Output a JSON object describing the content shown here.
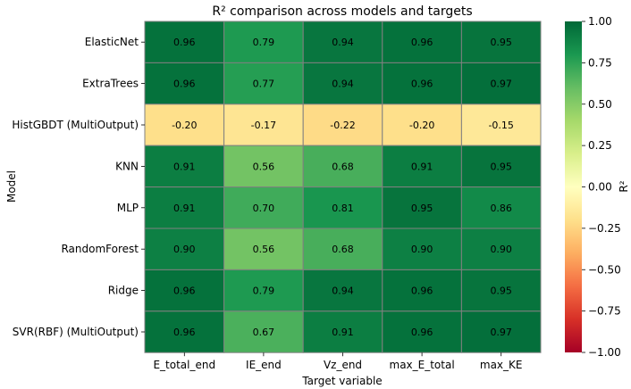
{
  "chart_data": {
    "type": "heatmap",
    "title": "R² comparison across models and targets",
    "xlabel": "Target variable",
    "ylabel": "Model",
    "colorbar_label": "R²",
    "colormap": "RdYlGn",
    "vmin": -1.0,
    "vmax": 1.0,
    "colorbar_ticks": [
      "1.00",
      "0.75",
      "0.50",
      "0.25",
      "0.00",
      "−0.25",
      "−0.50",
      "−0.75",
      "−1.00"
    ],
    "colorbar_tick_values": [
      1.0,
      0.75,
      0.5,
      0.25,
      0.0,
      -0.25,
      -0.5,
      -0.75,
      -1.0
    ],
    "x_categories": [
      "E_total_end",
      "IE_end",
      "Vz_end",
      "max_E_total",
      "max_KE"
    ],
    "y_categories": [
      "ElasticNet",
      "ExtraTrees",
      "HistGBDT (MultiOutput)",
      "KNN",
      "MLP",
      "RandomForest",
      "Ridge",
      "SVR(RBF) (MultiOutput)"
    ],
    "values": [
      [
        0.96,
        0.79,
        0.94,
        0.96,
        0.95
      ],
      [
        0.96,
        0.77,
        0.94,
        0.96,
        0.97
      ],
      [
        -0.2,
        -0.17,
        -0.22,
        -0.2,
        -0.15
      ],
      [
        0.91,
        0.56,
        0.68,
        0.91,
        0.95
      ],
      [
        0.91,
        0.7,
        0.81,
        0.95,
        0.86
      ],
      [
        0.9,
        0.56,
        0.68,
        0.9,
        0.9
      ],
      [
        0.96,
        0.79,
        0.94,
        0.96,
        0.95
      ],
      [
        0.96,
        0.67,
        0.91,
        0.96,
        0.97
      ]
    ]
  }
}
